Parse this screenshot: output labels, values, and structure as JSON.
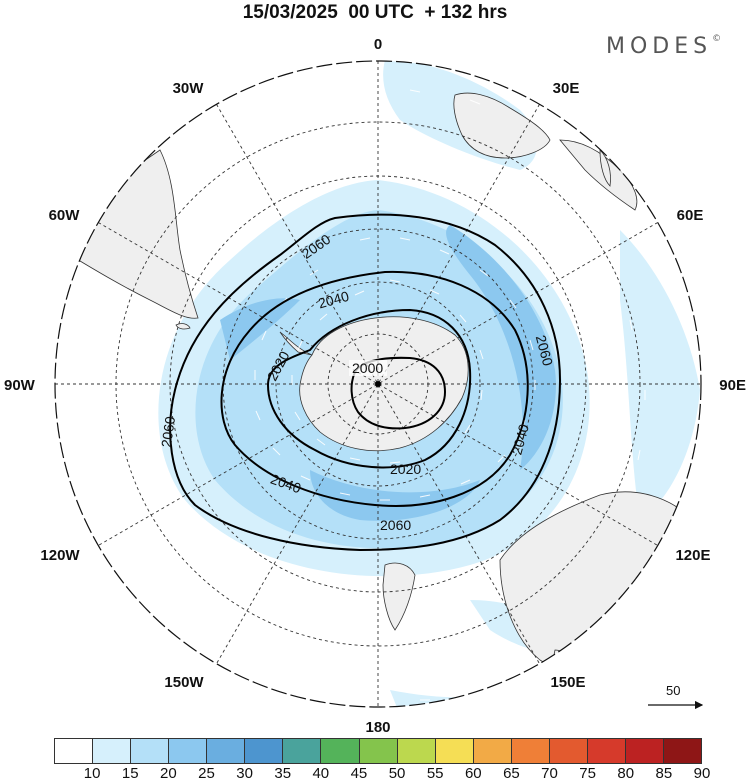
{
  "title": "15/03/2025  00 UTC  + 132 hrs",
  "brand": "MODES",
  "brand_mark": "©",
  "map": {
    "projection": "south-polar-stereographic",
    "longitude_labels": {
      "top": "0",
      "bottom": "180",
      "left": "90W",
      "right": "90E",
      "upper_left_30": "30W",
      "upper_right_30": "30E",
      "upper_left_60": "60W",
      "upper_right_60": "60E",
      "lower_left_120": "120W",
      "lower_right_120": "120E",
      "lower_left_150": "150W",
      "lower_right_150": "150E"
    },
    "contour_labels": {
      "inner": "2000",
      "a": "2020",
      "b": "2020",
      "c": "2040",
      "d": "2040",
      "e": "2040",
      "f": "2060",
      "g": "2060",
      "h": "2060",
      "i": "2060"
    },
    "contour_values": [
      2000,
      2020,
      2040,
      2060
    ],
    "vector_scale_label": "50"
  },
  "colorbar": {
    "ticks": [
      "10",
      "15",
      "20",
      "25",
      "30",
      "35",
      "40",
      "45",
      "50",
      "55",
      "60",
      "65",
      "70",
      "75",
      "80",
      "85",
      "90"
    ],
    "colors": [
      "#ffffff",
      "#d6f0fc",
      "#b4e0f8",
      "#8cc8ef",
      "#6aaee0",
      "#4d95cf",
      "#4aa39c",
      "#54b35a",
      "#84c44c",
      "#bcd84e",
      "#f5de55",
      "#f2aa46",
      "#ef7f37",
      "#e35a2f",
      "#d63a2b",
      "#bc2222",
      "#8e1616"
    ]
  }
}
